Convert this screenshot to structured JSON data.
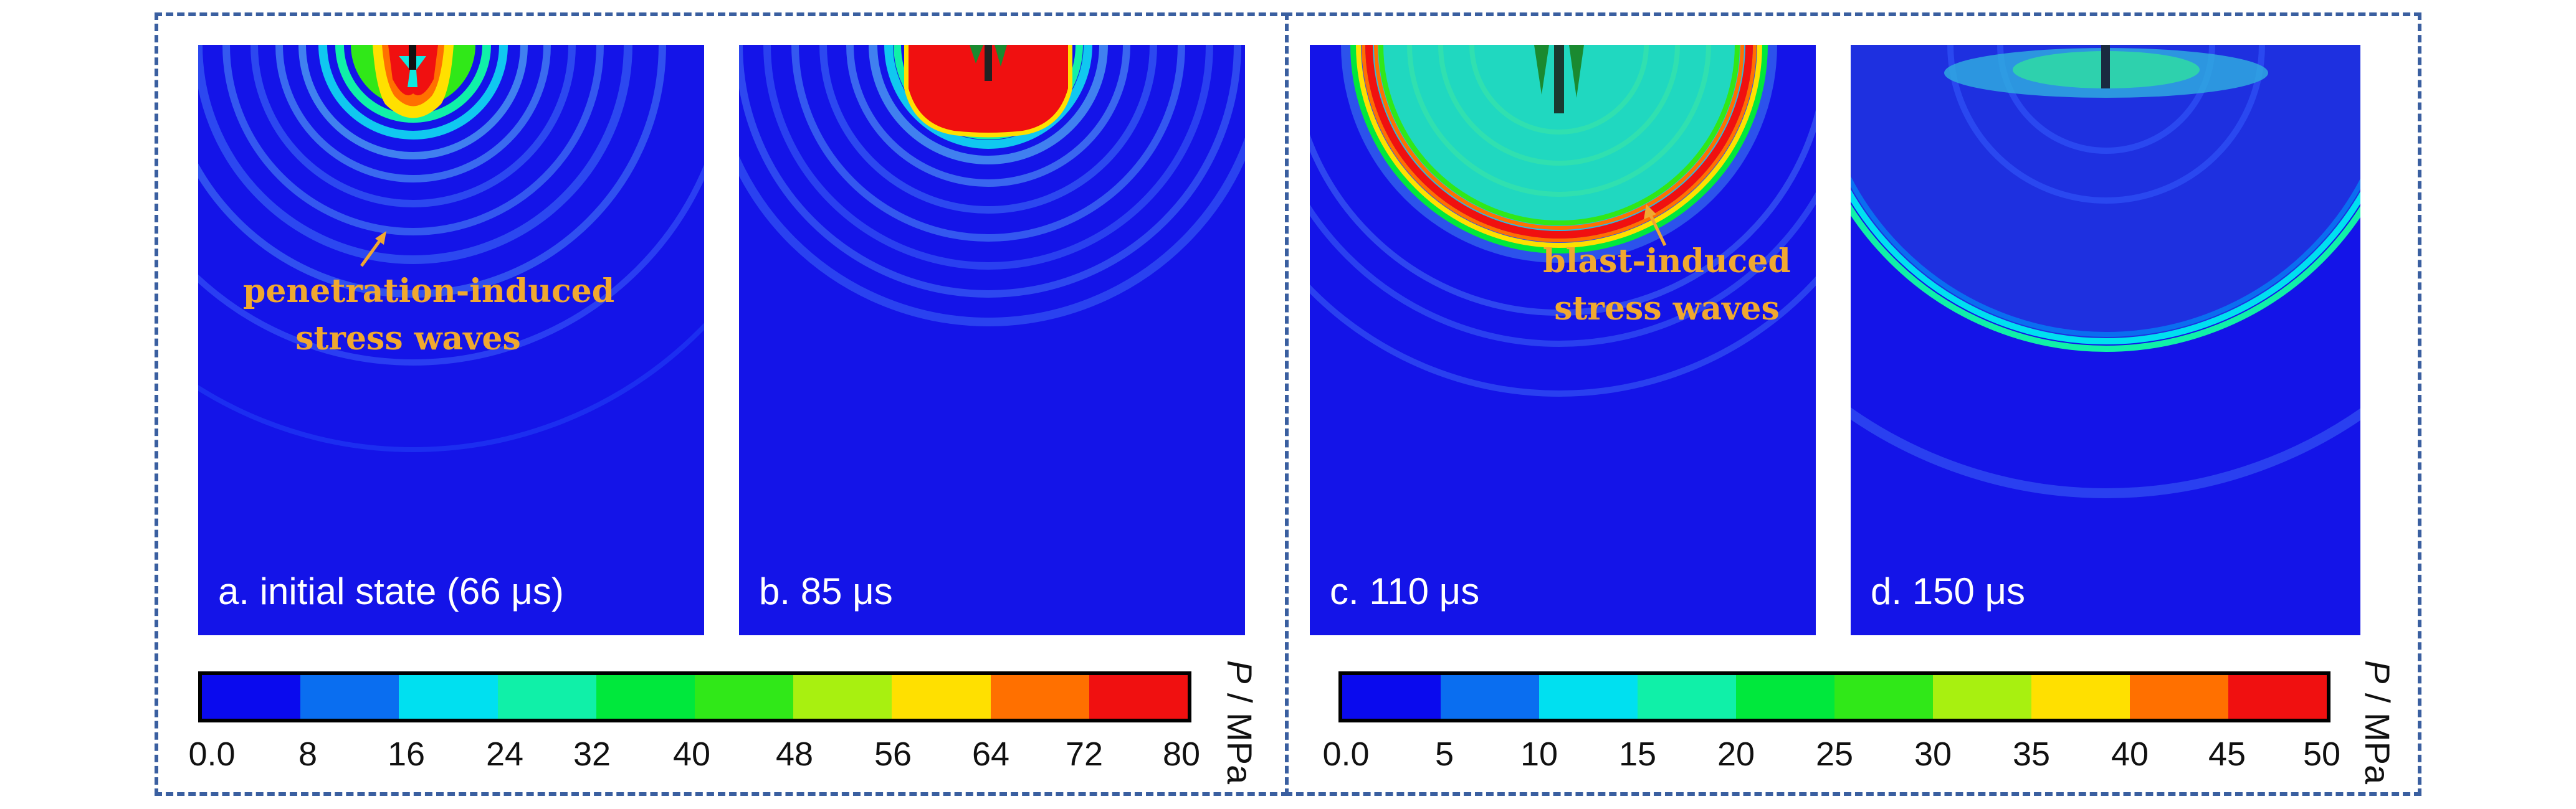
{
  "colors": {
    "frame": "#3a5fa0",
    "background_field": "#1414e8",
    "annotation": "#f0a830",
    "scale": [
      "#0a0aee",
      "#0a6ef0",
      "#00e0f0",
      "#10f0a8",
      "#00e83c",
      "#30e818",
      "#a8f010",
      "#ffe000",
      "#ff7000",
      "#f01010"
    ]
  },
  "panels": [
    {
      "label": "a. initial state (66 μs)"
    },
    {
      "label": "b. 85 μs"
    },
    {
      "label": "c. 110 μs"
    },
    {
      "label": "d. 150 μs"
    }
  ],
  "annotations": {
    "penetration": {
      "line1": "penetration-induced",
      "line2": "stress waves"
    },
    "blast": {
      "line1": "blast-induced",
      "line2": "stress waves"
    }
  },
  "colorbars": [
    {
      "ticks": [
        "0.0",
        "8",
        "16",
        "24",
        "32",
        "40",
        "48",
        "56",
        "64",
        "72",
        "80"
      ],
      "unit_symbol": "P",
      "unit_rest": " / MPa"
    },
    {
      "ticks": [
        "0.0",
        "5",
        "10",
        "15",
        "20",
        "25",
        "30",
        "35",
        "40",
        "45",
        "50"
      ],
      "unit_symbol": "P",
      "unit_rest": " / MPa"
    }
  ]
}
